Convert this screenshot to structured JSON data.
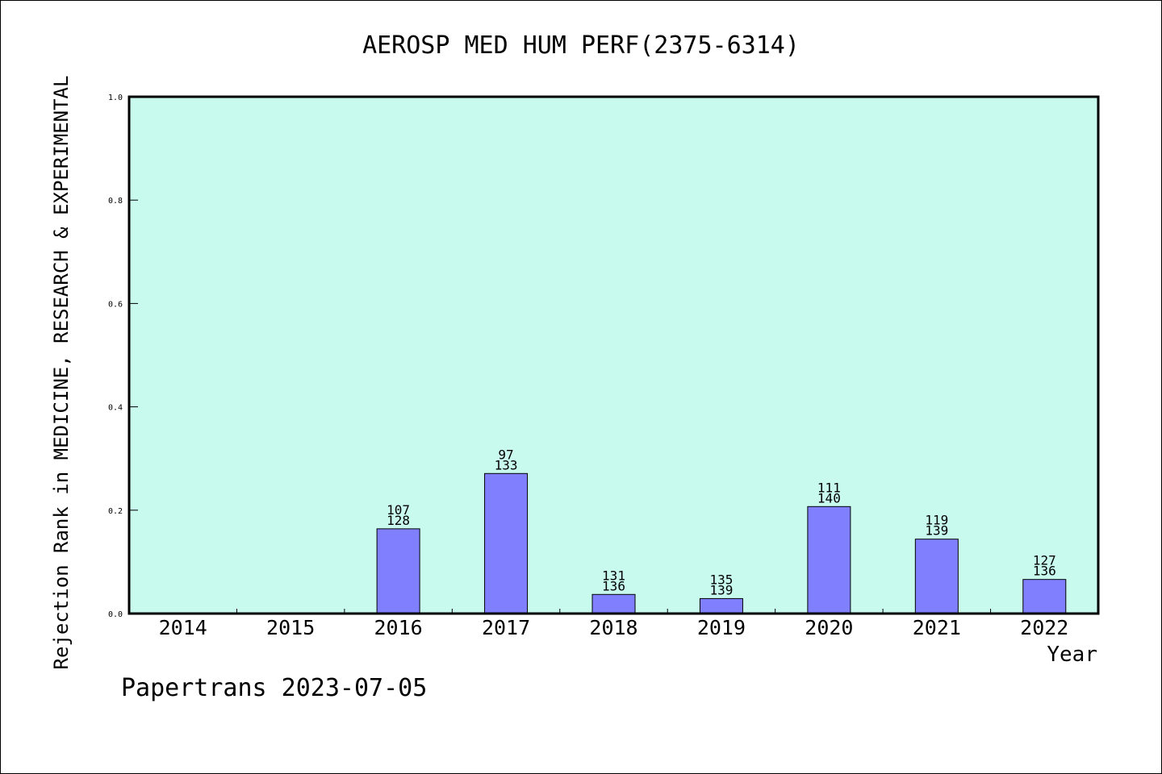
{
  "chart_data": {
    "type": "bar",
    "title": "AEROSP MED HUM PERF(2375-6314)",
    "xlabel": "Year",
    "ylabel": "Rejection Rank in MEDICINE, RESEARCH & EXPERIMENTAL",
    "ylim": [
      0,
      1.0
    ],
    "yticks": [
      "0.0",
      "0.2",
      "0.4",
      "0.6",
      "0.8",
      "1.0"
    ],
    "grid": false,
    "categories": [
      "2014",
      "2015",
      "2016",
      "2017",
      "2018",
      "2019",
      "2020",
      "2021",
      "2022"
    ],
    "values": [
      null,
      null,
      0.164,
      0.271,
      0.037,
      0.029,
      0.207,
      0.144,
      0.066
    ],
    "rank_labels": [
      "",
      "",
      "107",
      "97",
      "131",
      "135",
      "111",
      "119",
      "127"
    ],
    "total_labels": [
      "",
      "",
      "128",
      "133",
      "136",
      "139",
      "140",
      "139",
      "136"
    ],
    "colors": {
      "plot_background": "#c8fbee",
      "bar_fill": "#8080ff",
      "bar_stroke": "#000000"
    }
  },
  "footer": {
    "text": "Papertrans 2023-07-05"
  }
}
